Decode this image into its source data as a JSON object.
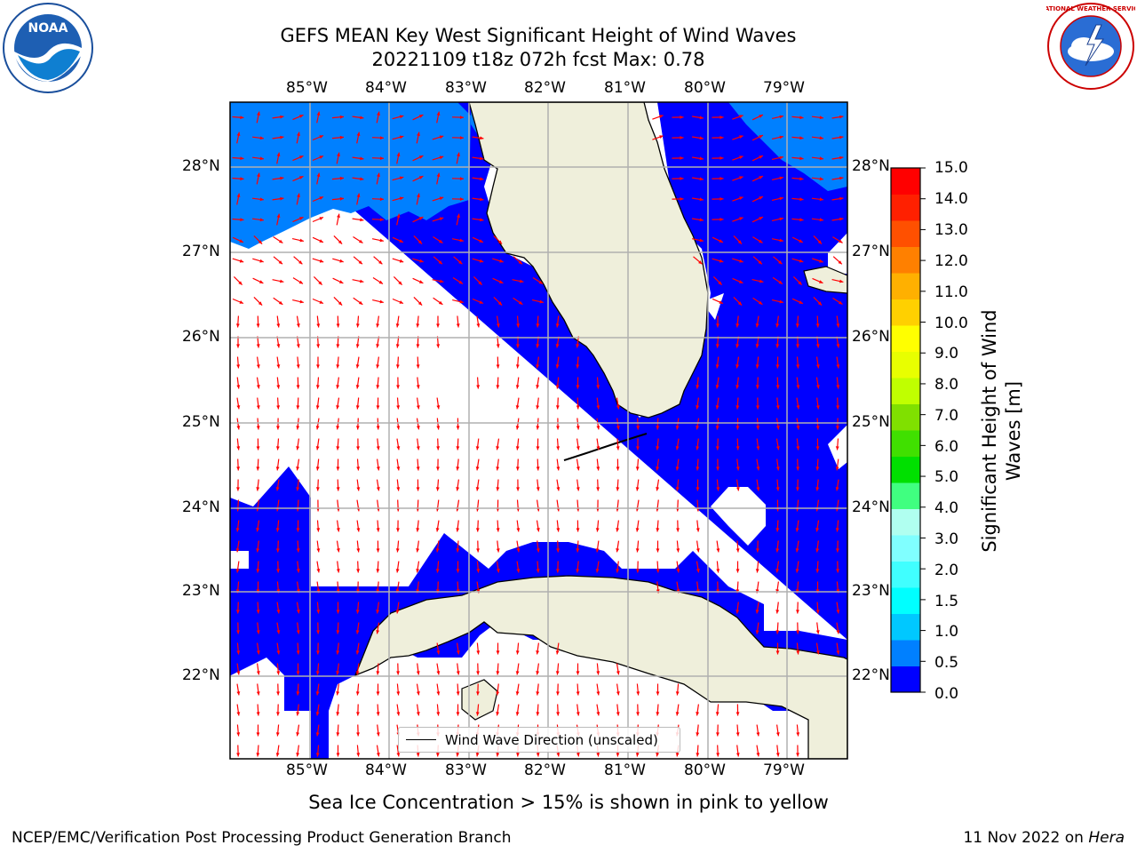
{
  "title_line1": "GEFS MEAN Key West Significant Height of Wind Waves",
  "title_line2": "20221109 t18z 072h fcst   Max: 0.78",
  "lon_labels": [
    "85°W",
    "84°W",
    "83°W",
    "82°W",
    "81°W",
    "80°W",
    "79°W"
  ],
  "lat_labels": [
    "28°N",
    "27°N",
    "26°N",
    "25°N",
    "24°N",
    "23°N",
    "22°N"
  ],
  "colorbar": {
    "label": "Significant Height of Wind Waves [m]",
    "ticks": [
      "15.0",
      "14.0",
      "13.0",
      "12.0",
      "11.0",
      "10.0",
      "9.0",
      "8.0",
      "7.0",
      "6.0",
      "5.0",
      "4.0",
      "3.0",
      "2.0",
      "1.5",
      "1.0",
      "0.5",
      "0.0"
    ],
    "colors": [
      "#0000ff",
      "#0080ff",
      "#00c8ff",
      "#00ffff",
      "#40ffff",
      "#80ffff",
      "#b0fff0",
      "#40ff80",
      "#00e000",
      "#40e000",
      "#80e000",
      "#c0ff00",
      "#e8ff00",
      "#ffff00",
      "#ffd000",
      "#ffb000",
      "#ff8000",
      "#ff5000",
      "#ff2000",
      "#ff0000"
    ]
  },
  "legend_label": "Wind Wave Direction (unscaled)",
  "subnote": "Sea Ice Concentration > 15% is shown in pink to yellow",
  "footer_left": "NCEP/EMC/Verification Post Processing Product Generation Branch",
  "footer_date": "11 Nov 2022 on ",
  "footer_machine": "Hera",
  "logos": {
    "left": "NOAA",
    "right": "NATIONAL WEATHER SERVICE"
  },
  "colors": {
    "wave_low": "#0000ff",
    "wave_mid": "#0080ff",
    "land": "#efefdb",
    "arrow": "#ff0000",
    "grid": "#b0b0b0"
  }
}
